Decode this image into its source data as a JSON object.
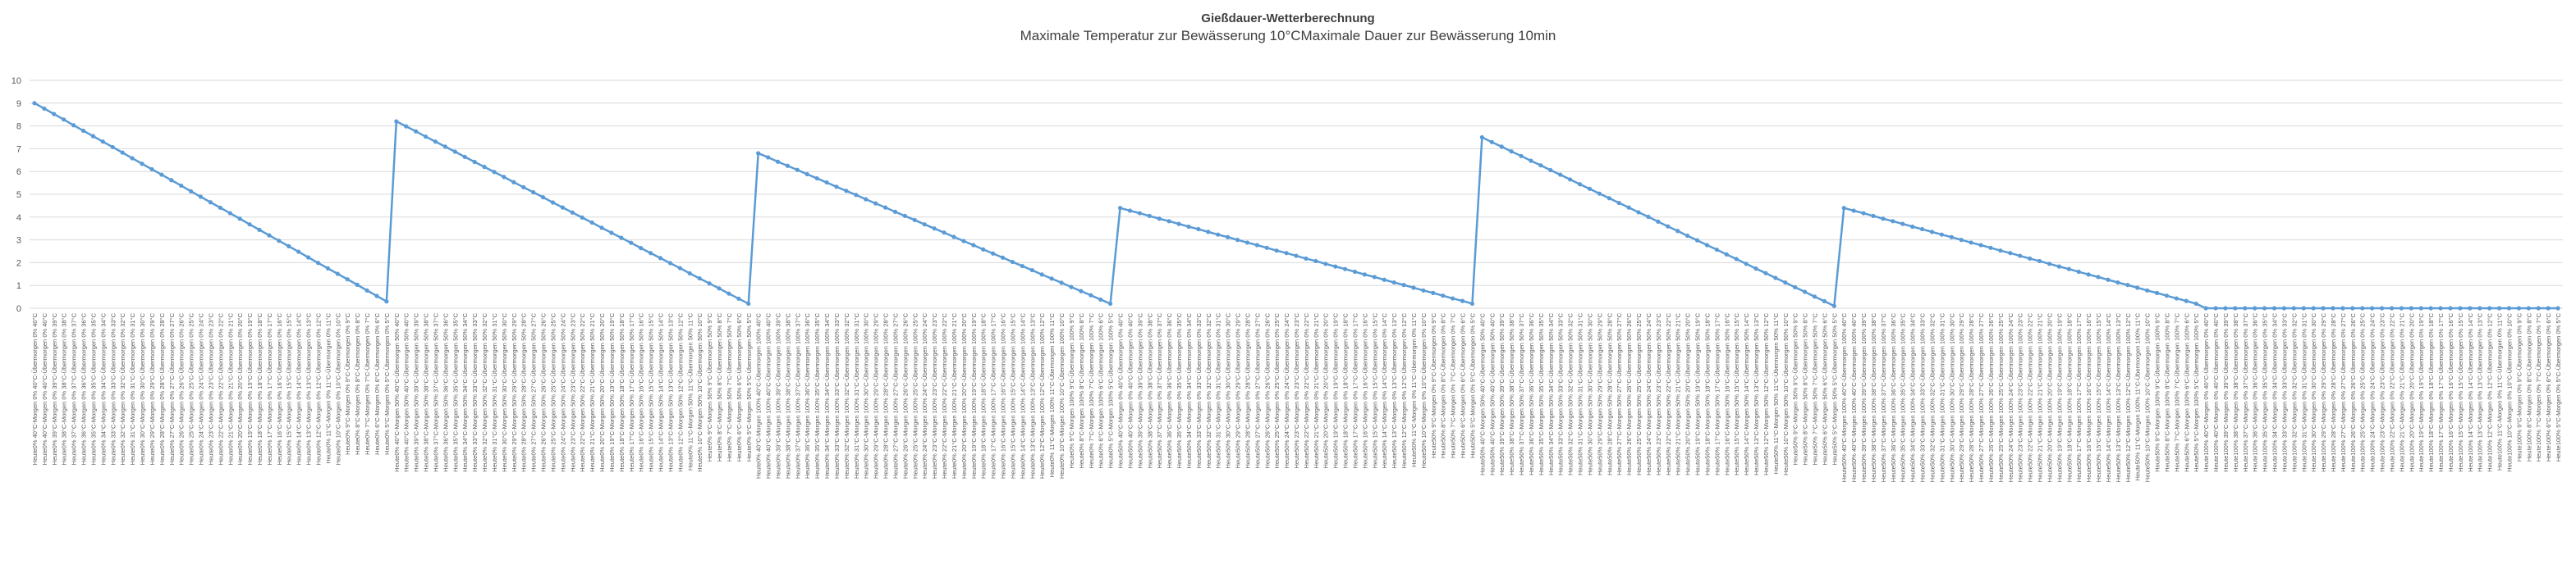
{
  "chart_data": {
    "type": "line",
    "title": "Gießdauer-Wetterberechnung",
    "subtitle": "Maximale Temperatur zur Bewässerung 10°CMaximale Dauer zur Bewässerung 10min",
    "xlabel": "",
    "ylabel": "",
    "ylim": [
      0,
      10
    ],
    "yticks": [
      0,
      1,
      2,
      3,
      4,
      5,
      6,
      7,
      8,
      9,
      10
    ],
    "grid": true,
    "legend": "none",
    "line_color": "#5B9BD5",
    "grid_color": "#D9D9D9",
    "category_scheme": {
      "label_format": "Heute{humidity}% {temp}°C-Morgen {rain}% {temp}°C-Übermorgen {rain}% {temp}°C",
      "humidity_levels": [
        0,
        50,
        100
      ],
      "rain_levels": [
        0,
        50,
        100
      ],
      "temperatures_per_block": [
        40,
        40,
        39,
        38,
        37,
        36,
        35,
        34,
        33,
        32,
        31,
        30,
        29,
        28,
        27,
        26,
        25,
        24,
        23,
        22,
        21,
        20,
        19,
        18,
        17,
        16,
        15,
        14,
        13,
        12,
        11,
        10,
        9,
        8,
        7,
        6,
        5
      ]
    },
    "series": [
      {
        "blocks": [
          {
            "start": 9.0,
            "end": 0.3
          },
          {
            "start": 8.2,
            "end": 0.2
          },
          {
            "start": 6.8,
            "end": 0.2
          },
          {
            "start": 4.4,
            "end": 0.2
          },
          {
            "start": 7.5,
            "end": 0.1
          },
          {
            "start": 4.4,
            "end": 0.2
          },
          {
            "start": 0.0,
            "end": 0.0
          }
        ]
      }
    ]
  }
}
